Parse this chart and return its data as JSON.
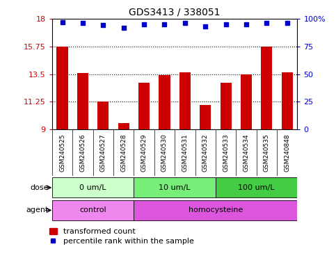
{
  "title": "GDS3413 / 338051",
  "samples": [
    "GSM240525",
    "GSM240526",
    "GSM240527",
    "GSM240528",
    "GSM240529",
    "GSM240530",
    "GSM240531",
    "GSM240532",
    "GSM240533",
    "GSM240534",
    "GSM240535",
    "GSM240848"
  ],
  "bar_values": [
    15.75,
    13.6,
    11.25,
    9.5,
    12.8,
    13.4,
    13.65,
    11.0,
    12.8,
    13.45,
    15.75,
    13.65
  ],
  "dot_values": [
    97,
    96,
    94,
    92,
    95,
    95,
    96,
    93,
    95,
    95,
    96,
    96
  ],
  "ylim_left": [
    9,
    18
  ],
  "ylim_right": [
    0,
    100
  ],
  "yticks_left": [
    9,
    11.25,
    13.5,
    15.75,
    18
  ],
  "yticks_right": [
    0,
    25,
    50,
    75,
    100
  ],
  "ytick_labels_left": [
    "9",
    "11.25",
    "13.5",
    "15.75",
    "18"
  ],
  "ytick_labels_right": [
    "0",
    "25",
    "50",
    "75",
    "100%"
  ],
  "hlines": [
    15.75,
    13.5,
    11.25
  ],
  "bar_color": "#cc0000",
  "dot_color": "#0000cc",
  "bar_width": 0.55,
  "dose_groups": [
    {
      "label": "0 um/L",
      "start": 0,
      "end": 4,
      "color": "#ccffcc"
    },
    {
      "label": "10 um/L",
      "start": 4,
      "end": 8,
      "color": "#77ee77"
    },
    {
      "label": "100 um/L",
      "start": 8,
      "end": 12,
      "color": "#44cc44"
    }
  ],
  "agent_groups": [
    {
      "label": "control",
      "start": 0,
      "end": 4,
      "color": "#ee88ee"
    },
    {
      "label": "homocysteine",
      "start": 4,
      "end": 12,
      "color": "#dd55dd"
    }
  ],
  "sample_bg_color": "#cccccc",
  "dose_label": "dose",
  "agent_label": "agent",
  "legend_bar": "transformed count",
  "legend_dot": "percentile rank within the sample",
  "background_color": "#ffffff"
}
